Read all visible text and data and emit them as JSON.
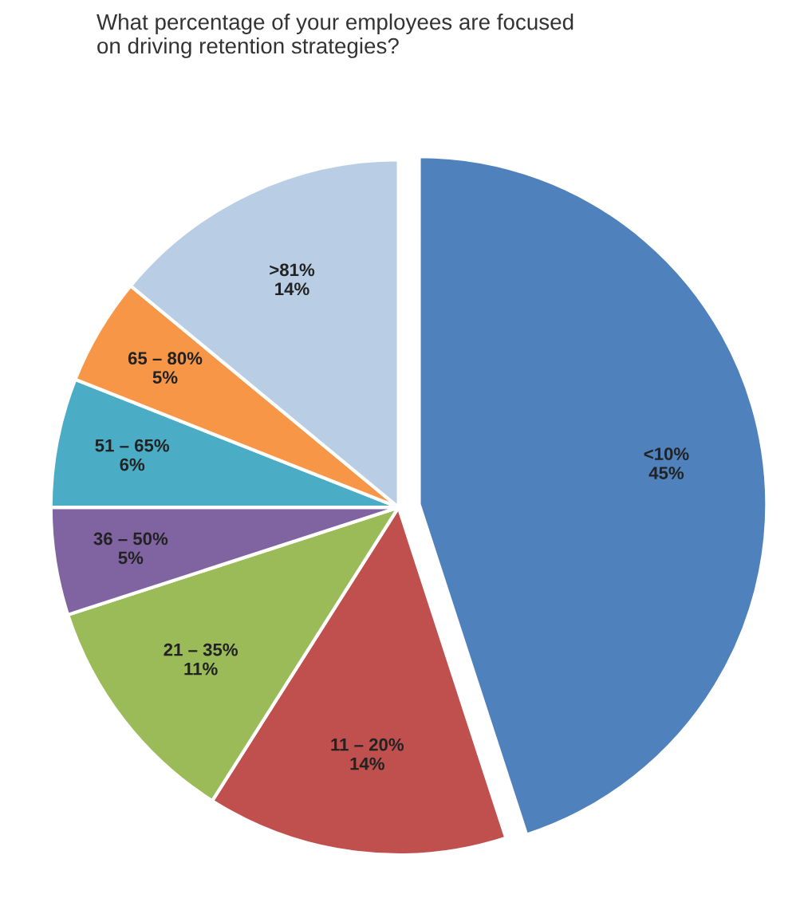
{
  "chart_data": {
    "type": "pie",
    "title": "What percentage of your employees are focused\non driving retention strategies?",
    "categories": [
      "<10%",
      "11 – 20%",
      "21 – 35%",
      "36 – 50%",
      "51 – 65%",
      "65 – 80%",
      ">81%"
    ],
    "values": [
      45,
      14,
      11,
      5,
      6,
      5,
      14
    ],
    "value_labels": [
      "45%",
      "14%",
      "11%",
      "5%",
      "6%",
      "5%",
      "14%"
    ],
    "colors": [
      "#4f81bd",
      "#c0504d",
      "#9bbb59",
      "#8064a2",
      "#4bacc6",
      "#f79646",
      "#b9cde5"
    ],
    "legend": false
  }
}
